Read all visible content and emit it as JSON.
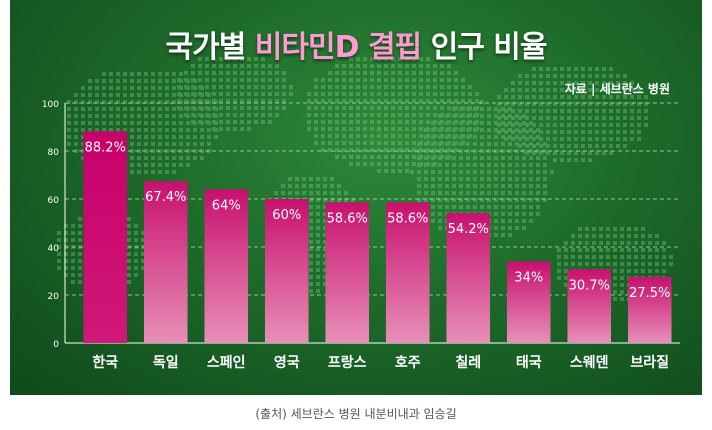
{
  "title": {
    "prefix": "국가별 ",
    "highlight": "비타민D 결핍",
    "suffix": " 인구 비율"
  },
  "source_note": "자료 | 세브란스 병원",
  "caption": "(출처) 세브란스 병원 내분비내과 임승길",
  "colors": {
    "bar_top": "#c8106e",
    "bar_bottom": "#d9408a",
    "bar_first": "#c8006a",
    "label_color": "#ffffff"
  },
  "chart_data": {
    "type": "bar",
    "categories": [
      "한국",
      "독일",
      "스페인",
      "영국",
      "프랑스",
      "호주",
      "칠레",
      "태국",
      "스웨덴",
      "브라질"
    ],
    "values": [
      88.2,
      67.4,
      64,
      60,
      58.6,
      58.6,
      54.2,
      34,
      30.7,
      27.5
    ],
    "data_labels": [
      "88.2%",
      "67.4%",
      "64%",
      "60%",
      "58.6%",
      "58.6%",
      "54.2%",
      "34%",
      "30.7%",
      "27.5%"
    ],
    "yticks": [
      0,
      20,
      40,
      60,
      80,
      100
    ],
    "ylim": [
      0,
      100
    ],
    "grid": true,
    "xlabel": "",
    "ylabel": ""
  }
}
